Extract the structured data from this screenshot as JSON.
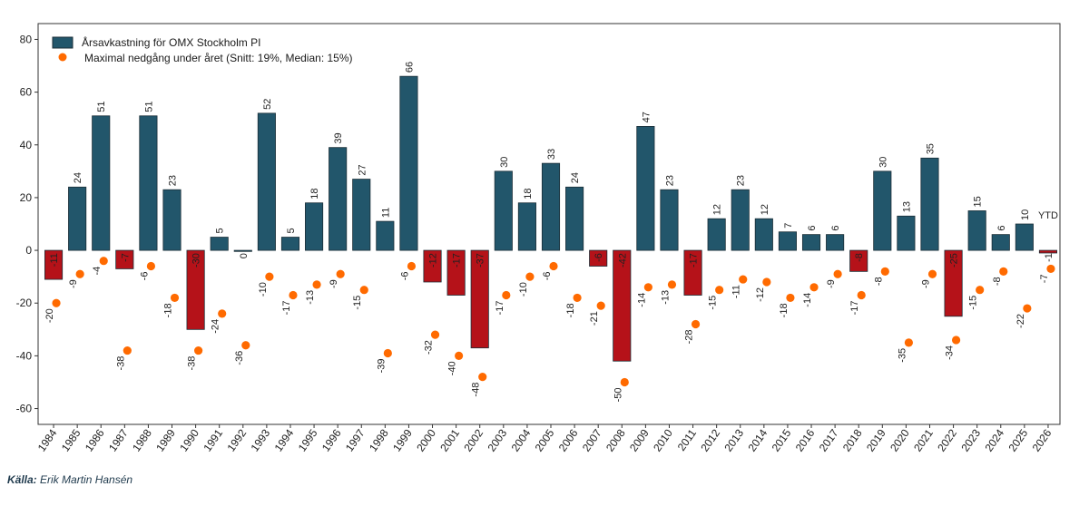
{
  "chart_data": {
    "type": "bar",
    "title": "",
    "xlabel": "",
    "ylabel": "",
    "ylim": [
      -66,
      86
    ],
    "yticks": [
      -60,
      -40,
      -20,
      0,
      20,
      40,
      60,
      80
    ],
    "categories": [
      "1984",
      "1985",
      "1986",
      "1987",
      "1988",
      "1989",
      "1990",
      "1991",
      "1992",
      "1993",
      "1994",
      "1995",
      "1996",
      "1997",
      "1998",
      "1999",
      "2000",
      "2001",
      "2002",
      "2003",
      "2004",
      "2005",
      "2006",
      "2007",
      "2008",
      "2009",
      "2010",
      "2011",
      "2012",
      "2013",
      "2014",
      "2015",
      "2016",
      "2017",
      "2018",
      "2019",
      "2020",
      "2021",
      "2022",
      "2023",
      "2024",
      "2025",
      "2026"
    ],
    "series": [
      {
        "name": "Årsavkastning för OMX Stockholm PI",
        "type": "bar",
        "values": [
          -11,
          24,
          51,
          -7,
          51,
          23,
          -30,
          5,
          0,
          52,
          5,
          18,
          39,
          27,
          11,
          66,
          -12,
          -17,
          -37,
          30,
          18,
          33,
          24,
          -6,
          -42,
          47,
          23,
          -17,
          12,
          23,
          12,
          7,
          6,
          6,
          -8,
          30,
          13,
          35,
          -25,
          15,
          6,
          10,
          -1
        ],
        "positive_color": "#22566b",
        "negative_color": "#b51219"
      },
      {
        "name": "Maximal nedgång under året (Snitt: 19%, Median: 15%)",
        "type": "scatter",
        "values": [
          -20,
          -9,
          -4,
          -38,
          -6,
          -18,
          -38,
          -24,
          -36,
          -10,
          -17,
          -13,
          -9,
          -15,
          -39,
          -6,
          -32,
          -40,
          -48,
          -17,
          -10,
          -6,
          -18,
          -21,
          -50,
          -14,
          -13,
          -28,
          -15,
          -11,
          -12,
          -18,
          -14,
          -9,
          -17,
          -8,
          -35,
          -9,
          -34,
          -15,
          -8,
          -22,
          -7
        ],
        "color": "#ff6a00"
      }
    ],
    "legend": "top-left",
    "annotations": [
      {
        "category": "2026",
        "text": "YTD"
      }
    ]
  },
  "source": {
    "label": "Källa:",
    "text": "Erik Martin Hansén"
  }
}
